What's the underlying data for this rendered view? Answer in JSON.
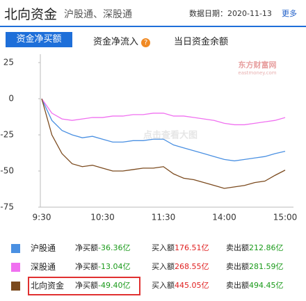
{
  "header": {
    "title": "北向资金",
    "subtitle": "沪股通、深股通",
    "date": "数据日期：2020-11-13",
    "more": "更多"
  },
  "tabs": [
    {
      "label": "资金净买额"
    },
    {
      "label": "资金净流入",
      "icon": "?"
    },
    {
      "label": "当日资金余额"
    }
  ],
  "watermark": {
    "logo": "东方财富网",
    "logo_sub": "eastmoney.com",
    "center": "点击查看大图"
  },
  "chart_data": {
    "type": "line",
    "categories": [
      "9:30",
      null,
      null,
      null,
      null,
      null,
      "10:30",
      null,
      null,
      null,
      null,
      null,
      "11:30",
      null,
      null,
      null,
      null,
      null,
      "14:00",
      null,
      null,
      null,
      null,
      null,
      "15:00"
    ],
    "series": [
      {
        "name": "沪股通",
        "color": "#4a90e2",
        "values": [
          0,
          -15,
          -22,
          -25,
          -27,
          -26,
          -28,
          -30,
          -30,
          -29,
          -29,
          -28,
          -28,
          -32,
          -34,
          -36,
          -38,
          -40,
          -42,
          -43,
          -42,
          -41,
          -40,
          -38,
          -36.36
        ]
      },
      {
        "name": "深股通",
        "color": "#f070f0",
        "values": [
          0,
          -10,
          -14,
          -15,
          -14,
          -13,
          -13,
          -12,
          -12,
          -11,
          -11,
          -10,
          -10,
          -12,
          -12,
          -13,
          -14,
          -15,
          -17,
          -18,
          -18,
          -17,
          -16,
          -15,
          -13.04
        ]
      },
      {
        "name": "北向资金",
        "color": "#7b4a1e",
        "values": [
          0,
          -25,
          -38,
          -45,
          -47,
          -46,
          -48,
          -50,
          -50,
          -49,
          -48,
          -48,
          -47,
          -52,
          -55,
          -56,
          -58,
          -60,
          -62,
          -61,
          -60,
          -58,
          -57,
          -53,
          -49.4
        ]
      }
    ],
    "ylim": [
      -75,
      25
    ],
    "yticks": [
      25,
      0,
      -25,
      -50,
      -75
    ]
  },
  "table": {
    "rows": [
      {
        "net_label": "净买额",
        "net": "-36.36亿",
        "buy_label": "买入额",
        "buy": "176.51亿",
        "sell_label": "卖出额",
        "sell": "212.86亿"
      },
      {
        "net_label": "净买额",
        "net": "-13.04亿",
        "buy_label": "买入额",
        "buy": "268.55亿",
        "sell_label": "卖出额",
        "sell": "281.59亿"
      },
      {
        "net_label": "净买额",
        "net": "-49.40亿",
        "buy_label": "买入额",
        "buy": "445.05亿",
        "sell_label": "卖出额",
        "sell": "494.45亿"
      }
    ]
  }
}
